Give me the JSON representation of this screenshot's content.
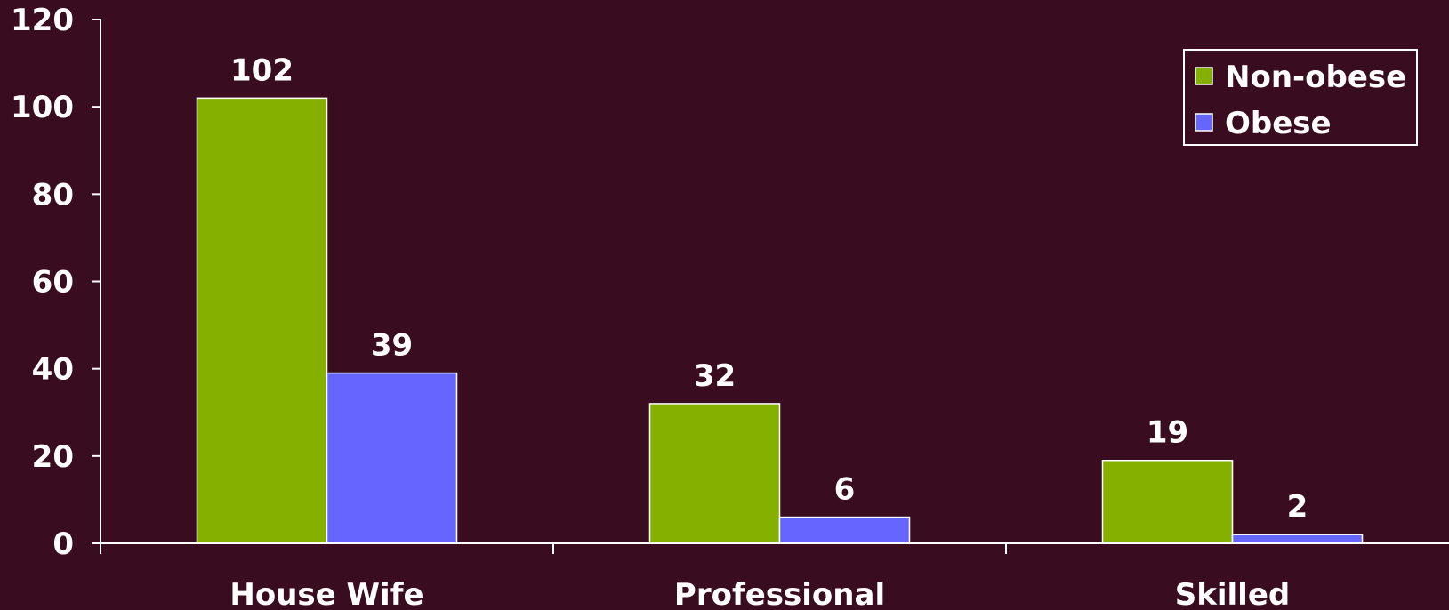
{
  "chart_data": {
    "type": "bar",
    "categories": [
      "House Wife",
      "Professional",
      "Skilled"
    ],
    "series": [
      {
        "name": "Non-obese",
        "values": [
          102,
          32,
          19
        ],
        "color": "#85b000"
      },
      {
        "name": "Obese",
        "values": [
          39,
          6,
          2
        ],
        "color": "#6666ff"
      }
    ],
    "ylim": [
      0,
      120
    ],
    "yticks": [
      "0",
      "20",
      "40",
      "60",
      "80",
      "100",
      "120"
    ],
    "data_labels": [
      [
        "102",
        "32",
        "19"
      ],
      [
        "39",
        "6",
        "2"
      ]
    ],
    "legend_position": "top-right",
    "grid": false,
    "title": "",
    "xlabel": "",
    "ylabel": "",
    "background": "#3a0c20",
    "axis_color": "#ffffff"
  }
}
